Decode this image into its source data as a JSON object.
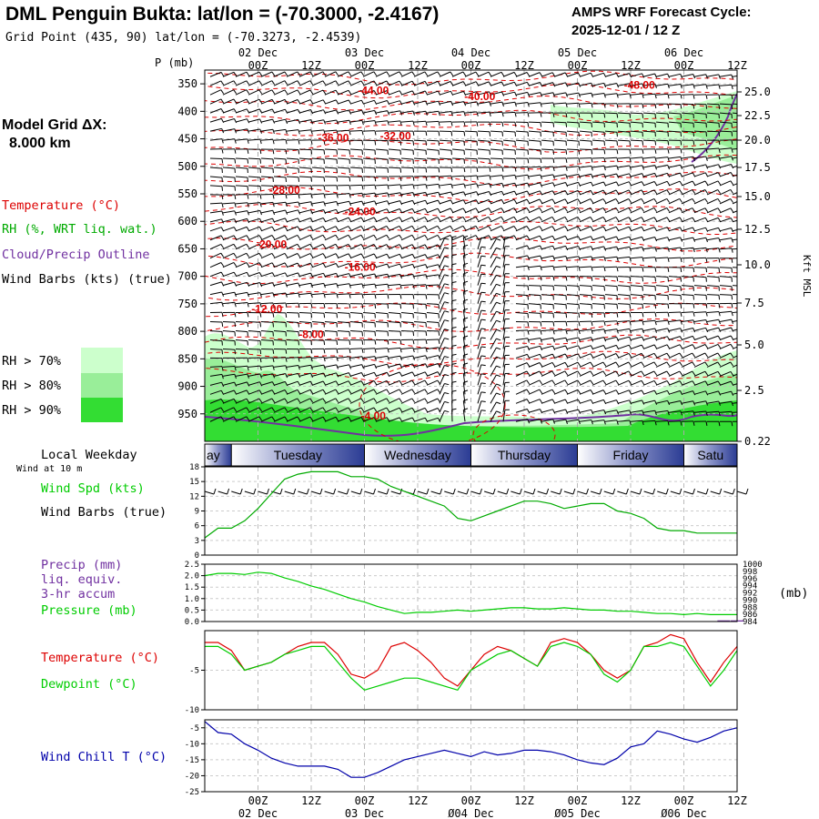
{
  "header": {
    "title": "DML Penguin Bukta:  lat/lon = (-70.3000, -2.4167)",
    "grid_point": "Grid Point (435, 90) lat/lon = (-70.3273, -2.4539)",
    "forecast_line1": "AMPS WRF Forecast Cycle:",
    "forecast_line2": "2025-12-01 / 12  Z",
    "model_grid_label": "Model Grid ΔX:",
    "model_grid_value": "8.000 km"
  },
  "colors": {
    "temperature": "#dd0000",
    "rh_label": "#00aa00",
    "cloud": "#7030a0",
    "rh70": "#ccffcc",
    "rh80": "#99ee99",
    "rh90": "#33dd33",
    "dewpoint": "#00cc00",
    "windchill": "#0000aa",
    "pressure": "#00cc00"
  },
  "time_axis": {
    "top_dates": [
      "02 Dec",
      "03 Dec",
      "04 Dec",
      "05 Dec",
      "06 Dec"
    ],
    "hour_labels": [
      "00Z",
      "12Z",
      "00Z",
      "12Z",
      "00Z",
      "12Z",
      "00Z",
      "12Z",
      "00Z",
      "12Z"
    ],
    "bottom_dates": [
      "02 Dec",
      "03 Dec",
      "Ø04 Dec",
      "Ø05 Dec",
      "Ø06 Dec"
    ],
    "x_range_hours": [
      -12,
      108
    ]
  },
  "weekday": {
    "label": "Local Weekday",
    "wind_note": "Wind at 10 m",
    "days": [
      "ay",
      "Tuesday",
      "Wednesday",
      "Thursday",
      "Friday",
      "Satu"
    ]
  },
  "left_labels": {
    "p_axis": "P (mb)",
    "temperature": "Temperature (°C)",
    "rh": "RH (%, WRT liq. wat.)",
    "cloud": "Cloud/Precip Outline",
    "wind": "Wind Barbs (kts) (true)",
    "rh70": "RH > 70%",
    "rh80": "RH > 80%",
    "rh90": "RH > 90%",
    "wind_spd": "Wind Spd (kts)",
    "wind_barbs": "Wind Barbs (true)",
    "precip1": "Precip (mm)",
    "precip2": "liq. equiv.",
    "precip3": "3-hr accum",
    "pressure": "Pressure (mb)",
    "pressure_unit": "(mb)",
    "temp_panel": "Temperature (°C)",
    "dewpoint": "Dewpoint (°C)",
    "windchill": "Wind Chill T (°C)",
    "kft": "Kft MSL"
  },
  "chart_data": [
    {
      "type": "heatmap",
      "name": "cross-section",
      "pressure_ticks": [
        "350",
        "400",
        "450",
        "500",
        "550",
        "600",
        "650",
        "700",
        "750",
        "800",
        "850",
        "900",
        "950"
      ],
      "height_ticks": [
        "25.0",
        "22.5",
        "20.0",
        "17.5",
        "15.0",
        "12.5",
        "10.0",
        "7.5",
        "5.0",
        "2.5",
        "0.22"
      ],
      "isotherm_labels": [
        {
          "text": "-44.00",
          "h": 26,
          "p": 362
        },
        {
          "text": "-48.00",
          "h": 86,
          "p": 352
        },
        {
          "text": "-40.00",
          "h": 50,
          "p": 373
        },
        {
          "text": "-36.00",
          "h": 17,
          "p": 448
        },
        {
          "text": "-32.00",
          "h": 31,
          "p": 445
        },
        {
          "text": "-28.00",
          "h": 6,
          "p": 543
        },
        {
          "text": "-24.00",
          "h": 23,
          "p": 582
        },
        {
          "text": "-20.00",
          "h": 3,
          "p": 642
        },
        {
          "text": "-16.00",
          "h": 23,
          "p": 683
        },
        {
          "text": "-12.00",
          "h": 2,
          "p": 759
        },
        {
          "text": "-8.00",
          "h": 12,
          "p": 806
        },
        {
          "text": "-4.00",
          "h": 26,
          "p": 954
        }
      ]
    },
    {
      "type": "line",
      "name": "wind-speed",
      "y_ticks": [
        "0",
        "3",
        "6",
        "9",
        "12",
        "15",
        "18"
      ],
      "ylim": [
        0,
        18
      ],
      "x": [
        -12,
        -9,
        -6,
        -3,
        0,
        3,
        6,
        9,
        12,
        15,
        18,
        21,
        24,
        27,
        30,
        33,
        36,
        39,
        42,
        45,
        48,
        51,
        54,
        57,
        60,
        63,
        66,
        69,
        72,
        75,
        78,
        81,
        84,
        87,
        90,
        93,
        96,
        99,
        102,
        105,
        108
      ],
      "values": [
        3.5,
        5.5,
        5.5,
        7,
        9.5,
        12.5,
        15.5,
        16.5,
        17,
        17,
        17,
        16,
        16,
        15.5,
        14,
        13,
        12,
        11,
        10,
        7.5,
        7,
        8,
        9,
        10,
        11,
        11,
        10.5,
        9.5,
        10,
        10.5,
        10.5,
        9,
        8.5,
        7.5,
        5.5,
        5,
        5,
        4.5,
        4.5,
        4.5,
        4.5
      ]
    },
    {
      "type": "line",
      "name": "precip-pressure",
      "y_ticks": [
        "0.0",
        "0.5",
        "1.0",
        "1.5",
        "2.0",
        "2.5"
      ],
      "ylim": [
        0,
        2.5
      ],
      "right_ticks": [
        "1000",
        "998",
        "996",
        "994",
        "992",
        "990",
        "988",
        "986",
        "984"
      ],
      "pressure_x": [
        -12,
        -9,
        -6,
        -3,
        0,
        3,
        6,
        9,
        12,
        15,
        18,
        21,
        24,
        27,
        30,
        33,
        36,
        39,
        42,
        45,
        48,
        51,
        54,
        57,
        60,
        63,
        66,
        69,
        72,
        75,
        78,
        81,
        84,
        87,
        90,
        93,
        96,
        99,
        102,
        105,
        108
      ],
      "pressure_values": [
        2.0,
        2.1,
        2.1,
        2.05,
        2.15,
        2.1,
        1.9,
        1.75,
        1.55,
        1.4,
        1.2,
        1.0,
        0.85,
        0.65,
        0.5,
        0.35,
        0.4,
        0.4,
        0.45,
        0.5,
        0.45,
        0.5,
        0.55,
        0.6,
        0.6,
        0.55,
        0.55,
        0.6,
        0.55,
        0.5,
        0.5,
        0.45,
        0.45,
        0.4,
        0.35,
        0.35,
        0.3,
        0.35,
        0.3,
        0.3,
        0.3
      ],
      "precip_values": [
        0,
        0,
        0,
        0,
        0,
        0,
        0,
        0,
        0,
        0,
        0,
        0,
        0,
        0,
        0,
        0,
        0,
        0,
        0,
        0,
        0,
        0,
        0,
        0,
        0,
        0,
        0,
        0,
        0,
        0,
        0,
        0,
        0,
        0,
        0,
        0,
        0,
        0,
        0,
        0.05,
        0.05
      ]
    },
    {
      "type": "line",
      "name": "temperature-dewpoint",
      "y_ticks": [
        "-5",
        "-10"
      ],
      "ylim": [
        -10,
        0
      ],
      "x": [
        -12,
        -9,
        -6,
        -3,
        0,
        3,
        6,
        9,
        12,
        15,
        18,
        21,
        24,
        27,
        30,
        33,
        36,
        39,
        42,
        45,
        48,
        51,
        54,
        57,
        60,
        63,
        66,
        69,
        72,
        75,
        78,
        81,
        84,
        87,
        90,
        93,
        96,
        99,
        102,
        105,
        108
      ],
      "temperature": [
        -1.5,
        -1.5,
        -2.5,
        -5,
        -4.5,
        -4,
        -3,
        -2,
        -1.5,
        -1.5,
        -3,
        -5.5,
        -6,
        -5,
        -2,
        -1.5,
        -2.5,
        -4,
        -6,
        -7,
        -5,
        -3,
        -2,
        -2.5,
        -3.5,
        -4.5,
        -1.5,
        -1,
        -1.5,
        -3,
        -5,
        -6,
        -5,
        -2,
        -1.5,
        -0.5,
        -1,
        -4,
        -6.5,
        -4,
        -2
      ],
      "dewpoint": [
        -2,
        -2,
        -3,
        -5,
        -4.5,
        -4,
        -3,
        -2.5,
        -2,
        -2,
        -4,
        -6,
        -7.5,
        -7,
        -6.5,
        -6,
        -6,
        -6.5,
        -7,
        -7.5,
        -5,
        -4,
        -3,
        -2.5,
        -3.5,
        -4.5,
        -2,
        -1.5,
        -2,
        -3,
        -5.5,
        -6.5,
        -5,
        -2,
        -2,
        -1.5,
        -2,
        -4.5,
        -7,
        -5,
        -2.5
      ]
    },
    {
      "type": "line",
      "name": "wind-chill",
      "y_ticks": [
        "-5",
        "-10",
        "-15",
        "-20",
        "-25"
      ],
      "ylim": [
        -25,
        -2.5
      ],
      "x": [
        -12,
        -9,
        -6,
        -3,
        0,
        3,
        6,
        9,
        12,
        15,
        18,
        21,
        24,
        27,
        30,
        33,
        36,
        39,
        42,
        45,
        48,
        51,
        54,
        57,
        60,
        63,
        66,
        69,
        72,
        75,
        78,
        81,
        84,
        87,
        90,
        93,
        96,
        99,
        102,
        105,
        108
      ],
      "values": [
        -3,
        -6.5,
        -7,
        -10,
        -12,
        -14.5,
        -16,
        -17,
        -17,
        -17,
        -18,
        -20.5,
        -20.5,
        -19,
        -17,
        -15,
        -14,
        -13,
        -12,
        -13,
        -14,
        -12.5,
        -13.5,
        -13,
        -12,
        -12,
        -12.5,
        -13.5,
        -15,
        -16,
        -16.5,
        -14.5,
        -11,
        -10,
        -6,
        -7,
        -8.5,
        -9.5,
        -8,
        -6,
        -5
      ]
    }
  ]
}
